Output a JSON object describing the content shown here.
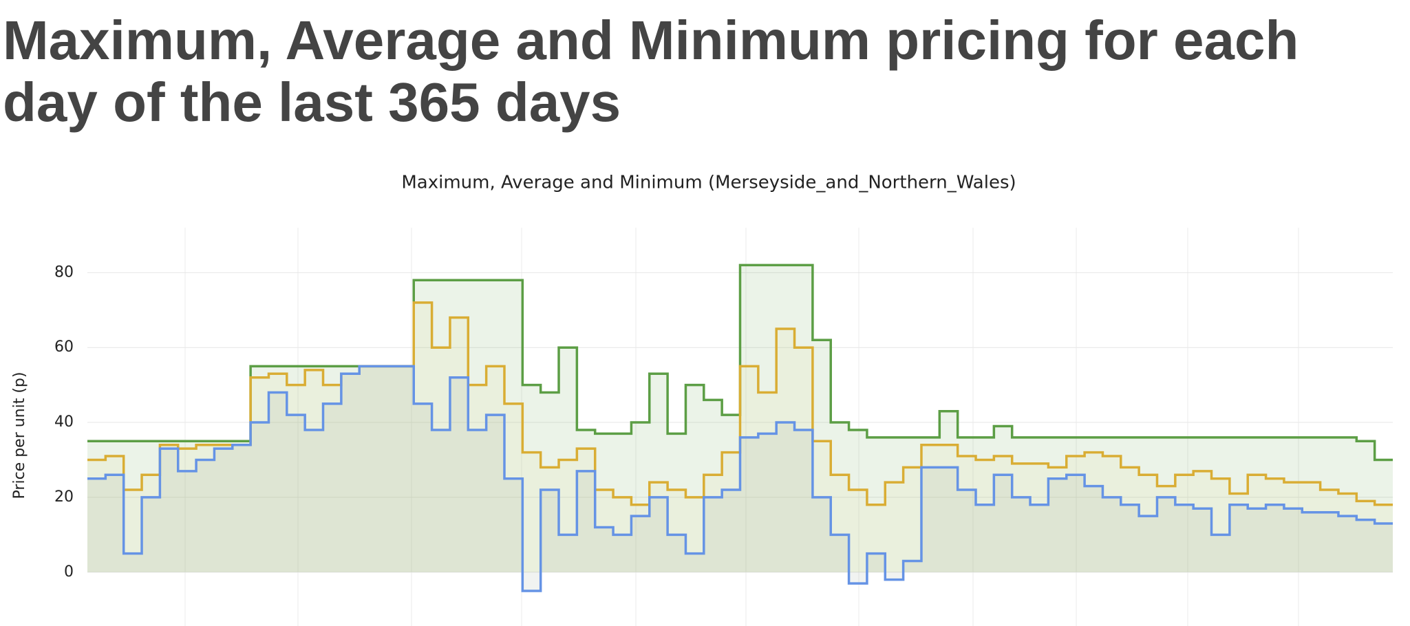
{
  "header": {
    "title": "Maximum, Average and Minimum pricing for each day of the last 365 days"
  },
  "chart_data": {
    "type": "step",
    "title": "Maximum, Average and Minimum (Merseyside_and_Northern_Wales)",
    "y_label": "Price per unit (p)",
    "ylim": [
      -14,
      92
    ],
    "yticks": [
      0,
      20,
      40,
      60,
      80
    ],
    "grid": true,
    "series": [
      {
        "name": "Maximum",
        "color": "#5c9e45",
        "fill": "#5c9e45",
        "values": [
          35,
          35,
          35,
          35,
          35,
          35,
          35,
          35,
          35,
          55,
          55,
          55,
          55,
          55,
          55,
          55,
          55,
          55,
          78,
          78,
          78,
          78,
          78,
          78,
          50,
          48,
          60,
          38,
          37,
          37,
          40,
          53,
          37,
          50,
          46,
          42,
          82,
          82,
          82,
          82,
          62,
          40,
          38,
          36,
          36,
          36,
          36,
          43,
          36,
          36,
          39,
          36,
          36,
          36,
          36,
          36,
          36,
          36,
          36,
          36,
          36,
          36,
          36,
          36,
          36,
          36,
          36,
          36,
          36,
          36,
          35,
          30
        ]
      },
      {
        "name": "Average",
        "color": "#d9ad34",
        "fill": "#e8e090",
        "values": [
          30,
          31,
          22,
          26,
          34,
          33,
          34,
          34,
          34,
          52,
          53,
          50,
          54,
          50,
          53,
          55,
          55,
          55,
          72,
          60,
          68,
          50,
          55,
          45,
          32,
          28,
          30,
          33,
          22,
          20,
          18,
          24,
          22,
          20,
          26,
          32,
          55,
          48,
          65,
          60,
          35,
          26,
          22,
          18,
          24,
          28,
          34,
          34,
          31,
          30,
          31,
          29,
          29,
          28,
          31,
          32,
          31,
          28,
          26,
          23,
          26,
          27,
          25,
          21,
          26,
          25,
          24,
          24,
          22,
          21,
          19,
          18
        ]
      },
      {
        "name": "Minimum",
        "color": "#6593e5",
        "fill": "#8a9a8a",
        "values": [
          25,
          26,
          5,
          20,
          33,
          27,
          30,
          33,
          34,
          40,
          48,
          42,
          38,
          45,
          53,
          55,
          55,
          55,
          45,
          38,
          52,
          38,
          42,
          25,
          -5,
          22,
          10,
          27,
          12,
          10,
          15,
          20,
          10,
          5,
          20,
          22,
          36,
          37,
          40,
          38,
          20,
          10,
          -3,
          5,
          -2,
          3,
          28,
          28,
          22,
          18,
          26,
          20,
          18,
          25,
          26,
          23,
          20,
          18,
          15,
          20,
          18,
          17,
          10,
          18,
          17,
          18,
          17,
          16,
          16,
          15,
          14,
          13
        ]
      }
    ]
  }
}
